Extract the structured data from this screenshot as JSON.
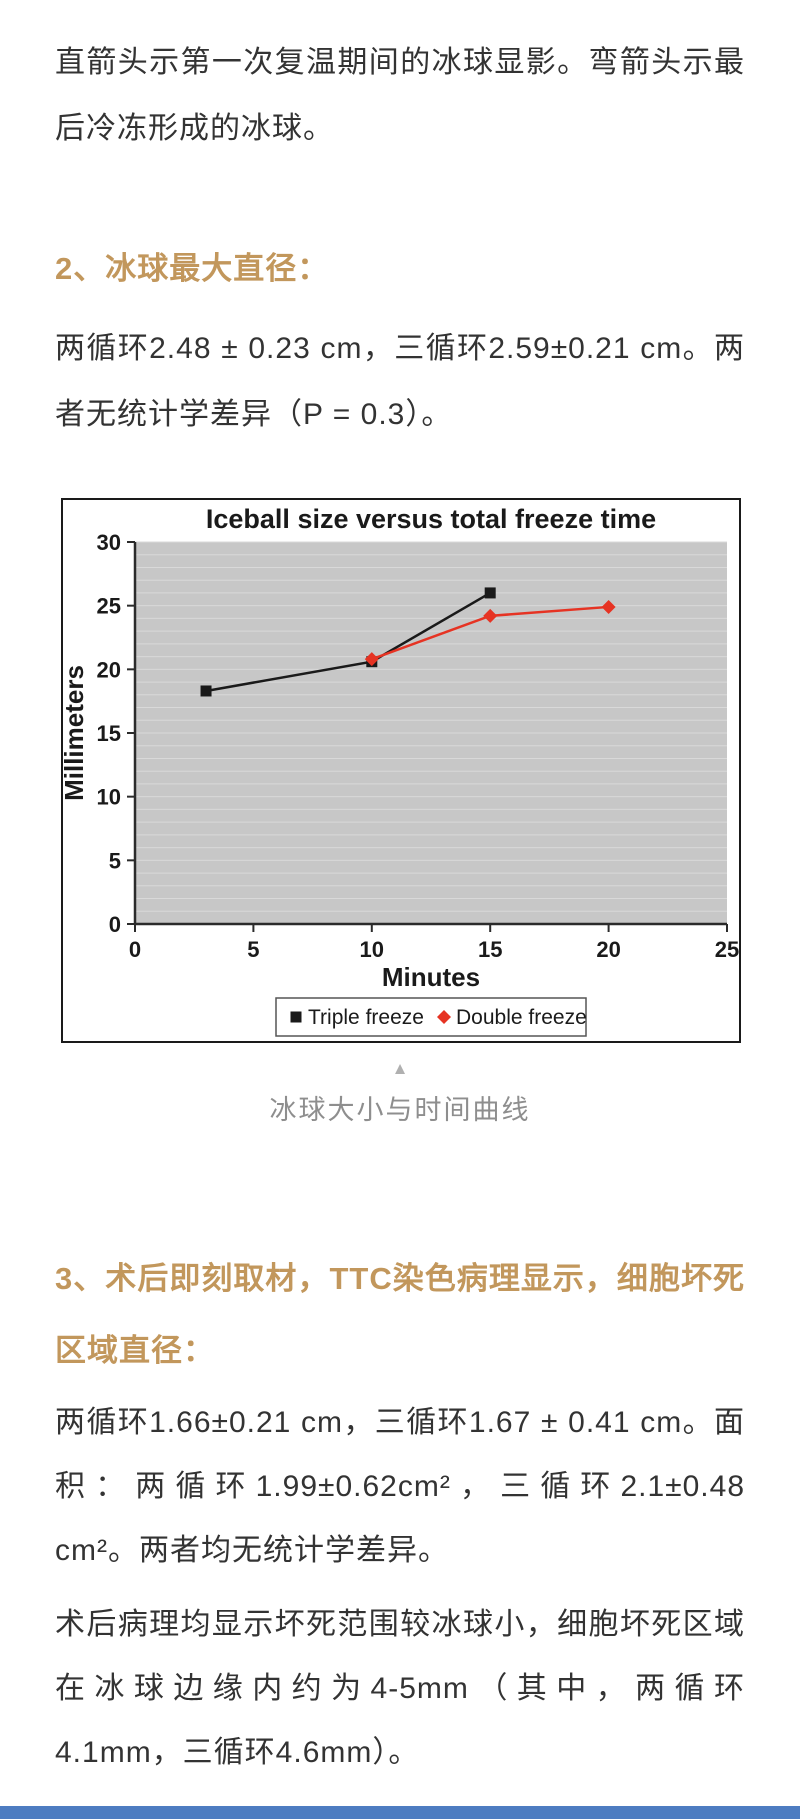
{
  "page": {
    "paragraph_1": "直箭头示第一次复温期间的冰球显影。弯箭头示最后冷冻形成的冰球。",
    "section_2": {
      "heading": "2、冰球最大直径：",
      "body": "两循环2.48 ± 0.23 cm，三循环2.59±0.21 cm。两者无统计学差异（P = 0.3）。"
    },
    "figure": {
      "collapse_icon": "▲",
      "caption": "冰球大小与时间曲线"
    },
    "section_3": {
      "heading": "3、术后即刻取材，TTC染色病理显示，细胞坏死区域直径：",
      "body_1": "两循环1.66±0.21 cm，三循环1.67 ± 0.41 cm。面积：两循环1.99±0.62cm²，三循环2.1±0.48 cm²。两者均无统计学差异。",
      "body_2": "术后病理均显示坏死范围较冰球小，细胞坏死区域在冰球边缘内约为4-5mm（其中，两循环4.1mm，三循环4.6mm）。"
    },
    "colors": {
      "heading_accent": "#c2975c",
      "body_text": "#333333",
      "caption_gray": "#8e8e8e",
      "bottom_bar_blue": "#4d7cc1"
    }
  },
  "chart_data": {
    "type": "line",
    "title": "Iceball size versus total freeze time",
    "xlabel": "Minutes",
    "ylabel": "Millimeters",
    "xlim": [
      0,
      25
    ],
    "ylim": [
      0,
      30
    ],
    "xticks": [
      0,
      5,
      10,
      15,
      20,
      25
    ],
    "yticks": [
      0,
      5,
      10,
      15,
      20,
      25,
      30
    ],
    "grid": "horizontal, every 1 mm, light gray on gray plot background",
    "legend_position": "bottom",
    "plot_bg": "#c7c7c7",
    "grid_color": "#d9d9d9",
    "series": [
      {
        "name": "Triple freeze",
        "color": "#1a1a1a",
        "marker": "square",
        "points": [
          [
            3,
            18.3
          ],
          [
            10,
            20.6
          ],
          [
            15,
            26.0
          ]
        ]
      },
      {
        "name": "Double freeze",
        "color": "#e63323",
        "marker": "diamond",
        "points": [
          [
            10,
            20.8
          ],
          [
            15,
            24.2
          ],
          [
            20,
            24.9
          ]
        ]
      }
    ]
  }
}
